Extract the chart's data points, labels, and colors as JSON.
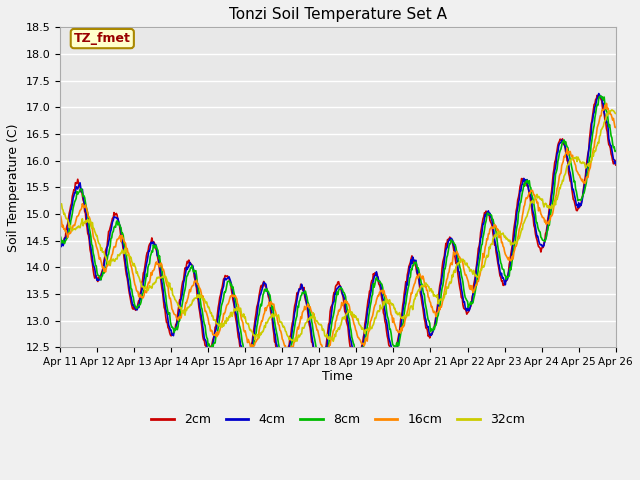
{
  "title": "Tonzi Soil Temperature Set A",
  "xlabel": "Time",
  "ylabel": "Soil Temperature (C)",
  "ylim": [
    12.5,
    18.5
  ],
  "yticks": [
    12.5,
    13.0,
    13.5,
    14.0,
    14.5,
    15.0,
    15.5,
    16.0,
    16.5,
    17.0,
    17.5,
    18.0,
    18.5
  ],
  "line_colors": [
    "#cc0000",
    "#0000cc",
    "#00bb00",
    "#ff8800",
    "#cccc00"
  ],
  "line_labels": [
    "2cm",
    "4cm",
    "8cm",
    "16cm",
    "32cm"
  ],
  "legend_label": "TZ_fmet",
  "plot_bg_color": "#e8e8e8",
  "fig_bg_color": "#f0f0f0",
  "grid_color": "#ffffff",
  "n_days": 15,
  "x_tick_labels": [
    "Apr 11",
    "Apr 12",
    "Apr 13",
    "Apr 14",
    "Apr 15",
    "Apr 16",
    "Apr 17",
    "Apr 18",
    "Apr 19",
    "Apr 20",
    "Apr 21",
    "Apr 22",
    "Apr 23",
    "Apr 24",
    "Apr 25",
    "Apr 26"
  ],
  "points_per_day": 48
}
